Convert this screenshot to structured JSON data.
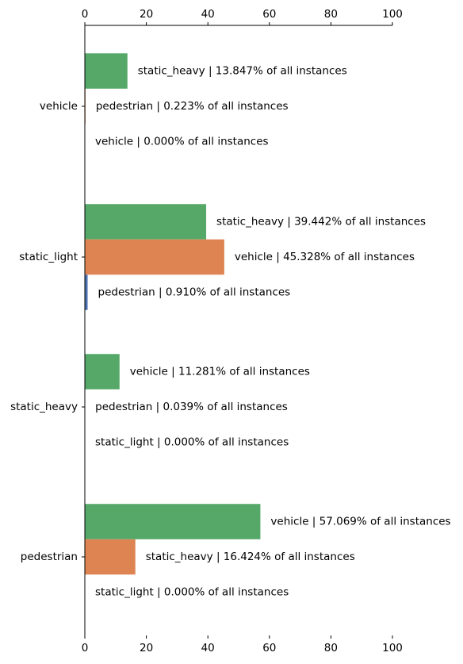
{
  "chart_data": {
    "type": "bar",
    "orientation": "horizontal",
    "xlim": [
      0,
      100
    ],
    "xticks": [
      0,
      20,
      40,
      60,
      80,
      100
    ],
    "grid": false,
    "categories": [
      "vehicle",
      "static_light",
      "static_heavy",
      "pedestrian"
    ],
    "groups": [
      {
        "category": "vehicle",
        "bars": [
          {
            "value": 13.847,
            "color": "#55a868",
            "label": "static_heavy | 13.847% of all instances"
          },
          {
            "value": 0.223,
            "color": "#dd8452",
            "label": "pedestrian | 0.223% of all instances"
          },
          {
            "value": 0.0,
            "color": "#4c72b0",
            "label": "vehicle | 0.000% of all instances"
          }
        ]
      },
      {
        "category": "static_light",
        "bars": [
          {
            "value": 39.442,
            "color": "#55a868",
            "label": "static_heavy | 39.442% of all instances"
          },
          {
            "value": 45.328,
            "color": "#dd8452",
            "label": "vehicle | 45.328% of all instances"
          },
          {
            "value": 0.91,
            "color": "#4c72b0",
            "label": "pedestrian | 0.910% of all instances"
          }
        ]
      },
      {
        "category": "static_heavy",
        "bars": [
          {
            "value": 11.281,
            "color": "#55a868",
            "label": "vehicle | 11.281% of all instances"
          },
          {
            "value": 0.039,
            "color": "#dd8452",
            "label": "pedestrian | 0.039% of all instances"
          },
          {
            "value": 0.0,
            "color": "#4c72b0",
            "label": "static_light | 0.000% of all instances"
          }
        ]
      },
      {
        "category": "pedestrian",
        "bars": [
          {
            "value": 57.069,
            "color": "#55a868",
            "label": "vehicle | 57.069% of all instances"
          },
          {
            "value": 16.424,
            "color": "#dd8452",
            "label": "static_heavy | 16.424% of all instances"
          },
          {
            "value": 0.0,
            "color": "#4c72b0",
            "label": "static_light | 0.000% of all instances"
          }
        ]
      }
    ]
  }
}
